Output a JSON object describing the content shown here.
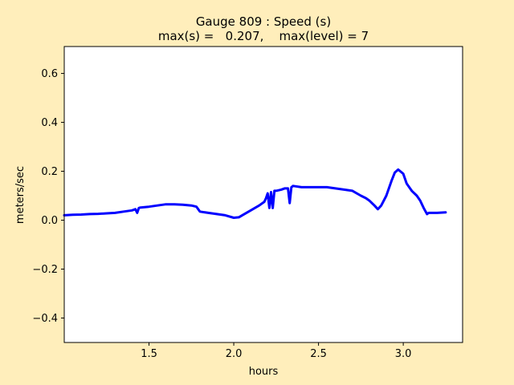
{
  "chart_data": {
    "type": "line",
    "title_line1": "Gauge 809 : Speed (s)",
    "title_line2": "max(s) =   0.207,    max(level) = 7",
    "xlabel": "hours",
    "ylabel": "meters/sec",
    "xlim": [
      1.0,
      3.35
    ],
    "ylim": [
      -0.5,
      0.71
    ],
    "xticks": [
      1.5,
      2.0,
      2.5,
      3.0
    ],
    "xtick_labels": [
      "1.5",
      "2.0",
      "2.5",
      "3.0"
    ],
    "yticks": [
      -0.4,
      -0.2,
      0.0,
      0.2,
      0.4,
      0.6
    ],
    "ytick_labels": [
      "−0.4",
      "−0.2",
      "0.0",
      "0.2",
      "0.4",
      "0.6"
    ],
    "grid": false,
    "series": [
      {
        "color": "#0000ff",
        "x": [
          1.0,
          1.05,
          1.1,
          1.15,
          1.2,
          1.25,
          1.3,
          1.35,
          1.4,
          1.42,
          1.43,
          1.44,
          1.45,
          1.5,
          1.55,
          1.6,
          1.65,
          1.7,
          1.75,
          1.78,
          1.8,
          1.85,
          1.9,
          1.95,
          2.0,
          2.03,
          2.05,
          2.1,
          2.15,
          2.18,
          2.19,
          2.2,
          2.21,
          2.22,
          2.23,
          2.24,
          2.25,
          2.28,
          2.3,
          2.32,
          2.33,
          2.34,
          2.35,
          2.4,
          2.45,
          2.5,
          2.55,
          2.6,
          2.65,
          2.7,
          2.75,
          2.78,
          2.8,
          2.83,
          2.85,
          2.87,
          2.9,
          2.93,
          2.95,
          2.97,
          3.0,
          3.02,
          3.05,
          3.08,
          3.1,
          3.12,
          3.14,
          3.15,
          3.2,
          3.25
        ],
        "y": [
          0.02,
          0.022,
          0.023,
          0.025,
          0.026,
          0.028,
          0.03,
          0.035,
          0.04,
          0.045,
          0.03,
          0.05,
          0.052,
          0.055,
          0.06,
          0.065,
          0.065,
          0.063,
          0.06,
          0.055,
          0.035,
          0.03,
          0.025,
          0.02,
          0.01,
          0.012,
          0.02,
          0.04,
          0.06,
          0.075,
          0.09,
          0.11,
          0.05,
          0.115,
          0.05,
          0.12,
          0.12,
          0.125,
          0.13,
          0.13,
          0.07,
          0.135,
          0.14,
          0.135,
          0.135,
          0.135,
          0.135,
          0.13,
          0.125,
          0.12,
          0.1,
          0.09,
          0.08,
          0.06,
          0.045,
          0.06,
          0.1,
          0.16,
          0.195,
          0.207,
          0.19,
          0.15,
          0.12,
          0.1,
          0.08,
          0.05,
          0.025,
          0.03,
          0.03,
          0.032
        ]
      }
    ]
  }
}
